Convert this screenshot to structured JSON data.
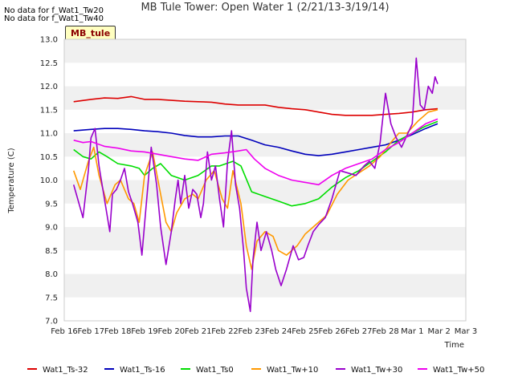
{
  "messages": [
    "No data for f_Wat1_Tw20",
    "No data for f_Wat1_Tw40"
  ],
  "badge": "MB_tule",
  "chart_data": {
    "type": "line",
    "title": "MB Tule Tower: Open Water 1 (2/21/13-3/19/14)",
    "xlabel": "Time",
    "ylabel": "Temperature (C)",
    "ylim": [
      7.0,
      13.0
    ],
    "xlim": [
      0,
      15
    ],
    "grid": "alternating horizontal bands",
    "legend_position": "bottom",
    "y_ticks": [
      "7.0",
      "7.5",
      "8.0",
      "8.5",
      "9.0",
      "9.5",
      "10.0",
      "10.5",
      "11.0",
      "11.5",
      "12.0",
      "12.5",
      "13.0"
    ],
    "x_ticks": [
      "Feb 16",
      "Feb 17",
      "Feb 18",
      "Feb 19",
      "Feb 20",
      "Feb 21",
      "Feb 22",
      "Feb 23",
      "Feb 24",
      "Feb 25",
      "Feb 26",
      "Feb 27",
      "Feb 28",
      "Mar 1",
      "Mar 2",
      "Mar 3"
    ],
    "series": [
      {
        "name": "Wat1_Ts-32",
        "color": "#dd0000",
        "x": [
          0.35,
          1,
          1.5,
          2,
          2.5,
          3,
          3.5,
          4,
          4.5,
          5,
          5.5,
          6,
          6.5,
          7,
          7.5,
          8,
          8.5,
          9,
          9.5,
          10,
          10.5,
          11,
          11.5,
          12,
          12.5,
          13,
          13.5,
          13.95
        ],
        "values": [
          11.67,
          11.72,
          11.75,
          11.74,
          11.78,
          11.72,
          11.72,
          11.7,
          11.68,
          11.67,
          11.66,
          11.62,
          11.6,
          11.6,
          11.6,
          11.55,
          11.52,
          11.5,
          11.45,
          11.4,
          11.38,
          11.38,
          11.38,
          11.4,
          11.42,
          11.45,
          11.5,
          11.52
        ]
      },
      {
        "name": "Wat1_Ts-16",
        "color": "#0000bb",
        "x": [
          0.35,
          1,
          1.5,
          2,
          2.5,
          3,
          3.5,
          4,
          4.5,
          5,
          5.5,
          6,
          6.5,
          7,
          7.5,
          8,
          8.5,
          9,
          9.5,
          10,
          10.5,
          11,
          11.5,
          12,
          12.5,
          13,
          13.5,
          13.95
        ],
        "values": [
          11.05,
          11.08,
          11.1,
          11.1,
          11.08,
          11.05,
          11.03,
          11.0,
          10.95,
          10.92,
          10.92,
          10.94,
          10.94,
          10.85,
          10.75,
          10.7,
          10.62,
          10.55,
          10.52,
          10.55,
          10.6,
          10.65,
          10.7,
          10.75,
          10.85,
          10.97,
          11.1,
          11.2
        ]
      },
      {
        "name": "Wat1_Ts0",
        "color": "#00dd00",
        "x": [
          0.35,
          0.7,
          1,
          1.3,
          1.6,
          2,
          2.5,
          2.8,
          3,
          3.3,
          3.6,
          4,
          4.5,
          5,
          5.5,
          5.8,
          6.3,
          6.6,
          7,
          7.5,
          8,
          8.5,
          9,
          9.5,
          10,
          10.5,
          11,
          11.5,
          12,
          12.5,
          13,
          13.5,
          13.95
        ],
        "values": [
          10.65,
          10.5,
          10.45,
          10.6,
          10.5,
          10.35,
          10.3,
          10.25,
          10.1,
          10.25,
          10.35,
          10.1,
          10.0,
          10.1,
          10.3,
          10.3,
          10.4,
          10.3,
          9.75,
          9.65,
          9.55,
          9.45,
          9.5,
          9.6,
          9.85,
          10.05,
          10.2,
          10.4,
          10.6,
          10.85,
          11.0,
          11.15,
          11.25
        ]
      },
      {
        "name": "Wat1_Tw+10",
        "color": "#ff9900",
        "x": [
          0.35,
          0.6,
          0.9,
          1.1,
          1.3,
          1.6,
          1.9,
          2.1,
          2.4,
          2.6,
          2.8,
          3.0,
          3.3,
          3.6,
          3.8,
          4.0,
          4.2,
          4.5,
          4.8,
          5.0,
          5.3,
          5.6,
          5.9,
          6.1,
          6.3,
          6.6,
          6.8,
          7.0,
          7.2,
          7.5,
          7.8,
          8.0,
          8.3,
          8.7,
          9.0,
          9.5,
          9.8,
          10.2,
          10.6,
          11.0,
          11.4,
          11.8,
          12.2,
          12.5,
          12.8,
          13.2,
          13.6,
          13.95
        ],
        "values": [
          10.2,
          9.8,
          10.4,
          10.7,
          10.1,
          9.5,
          9.9,
          10.0,
          9.6,
          9.5,
          9.1,
          10.1,
          10.6,
          9.7,
          9.1,
          8.9,
          9.3,
          9.6,
          9.7,
          9.6,
          10.0,
          10.2,
          9.6,
          9.4,
          10.2,
          9.5,
          8.6,
          8.1,
          8.7,
          8.9,
          8.8,
          8.5,
          8.4,
          8.6,
          8.85,
          9.1,
          9.25,
          9.7,
          10.0,
          10.15,
          10.3,
          10.5,
          10.8,
          11.0,
          11.0,
          11.25,
          11.45,
          11.5
        ]
      },
      {
        "name": "Wat1_Tw+30",
        "color": "#9900cc",
        "x": [
          0.35,
          0.5,
          0.7,
          0.9,
          1.0,
          1.15,
          1.3,
          1.5,
          1.7,
          1.8,
          1.95,
          2.1,
          2.25,
          2.4,
          2.55,
          2.75,
          2.9,
          3.05,
          3.25,
          3.45,
          3.6,
          3.8,
          4.0,
          4.15,
          4.25,
          4.35,
          4.5,
          4.65,
          4.8,
          4.95,
          5.1,
          5.2,
          5.35,
          5.5,
          5.65,
          5.8,
          5.95,
          6.1,
          6.25,
          6.4,
          6.55,
          6.7,
          6.8,
          6.95,
          7.05,
          7.2,
          7.35,
          7.55,
          7.75,
          7.9,
          8.1,
          8.3,
          8.55,
          8.75,
          8.95,
          9.1,
          9.3,
          9.5,
          9.75,
          10.0,
          10.3,
          10.6,
          10.9,
          11.2,
          11.4,
          11.6,
          11.8,
          12.0,
          12.2,
          12.4,
          12.6,
          12.8,
          13.0,
          13.15,
          13.3,
          13.45,
          13.6,
          13.75,
          13.85,
          13.95
        ],
        "values": [
          9.9,
          9.6,
          9.2,
          10.2,
          10.9,
          11.1,
          10.3,
          9.6,
          8.9,
          9.7,
          9.8,
          10.0,
          10.25,
          9.75,
          9.5,
          9.1,
          8.4,
          9.4,
          10.7,
          9.9,
          9.0,
          8.2,
          8.9,
          9.6,
          10.0,
          9.5,
          10.1,
          9.4,
          9.8,
          9.7,
          9.2,
          9.5,
          10.6,
          10.0,
          10.3,
          9.6,
          9.0,
          10.4,
          11.05,
          9.9,
          9.4,
          8.5,
          7.7,
          7.2,
          8.3,
          9.1,
          8.5,
          8.9,
          8.5,
          8.1,
          7.75,
          8.1,
          8.6,
          8.3,
          8.35,
          8.6,
          8.9,
          9.05,
          9.2,
          9.6,
          10.2,
          10.15,
          10.1,
          10.3,
          10.4,
          10.25,
          10.8,
          11.85,
          11.2,
          10.9,
          10.7,
          10.95,
          11.2,
          12.6,
          11.6,
          11.5,
          12.0,
          11.85,
          12.2,
          12.05
        ]
      },
      {
        "name": "Wat1_Tw+50",
        "color": "#ee00ee",
        "x": [
          0.35,
          0.7,
          1,
          1.5,
          2,
          2.5,
          3,
          3.5,
          4,
          4.5,
          5,
          5.5,
          6,
          6.5,
          6.8,
          7.1,
          7.5,
          8,
          8.5,
          9,
          9.5,
          10,
          10.5,
          11,
          11.5,
          12,
          12.5,
          13,
          13.5,
          13.95
        ],
        "values": [
          10.85,
          10.8,
          10.82,
          10.72,
          10.68,
          10.62,
          10.6,
          10.55,
          10.5,
          10.45,
          10.42,
          10.55,
          10.58,
          10.62,
          10.65,
          10.45,
          10.25,
          10.1,
          10.0,
          9.95,
          9.9,
          10.1,
          10.25,
          10.35,
          10.45,
          10.65,
          10.8,
          11.0,
          11.2,
          11.3
        ]
      }
    ]
  }
}
